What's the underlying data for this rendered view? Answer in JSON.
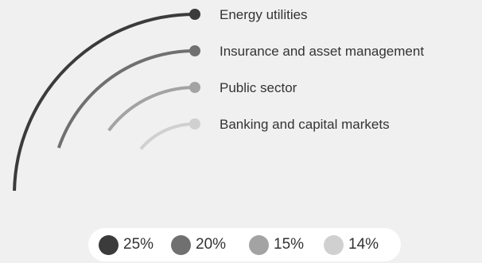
{
  "chart_data": {
    "type": "radial-bar",
    "title": "",
    "series": [
      {
        "name": "Energy utilities",
        "value": 25,
        "color": "#3b3b3b"
      },
      {
        "name": "Insurance and asset management",
        "value": 20,
        "color": "#707070"
      },
      {
        "name": "Public sector",
        "value": 15,
        "color": "#a3a3a3"
      },
      {
        "name": "Banking and capital markets",
        "value": 14,
        "color": "#d0d0d0"
      }
    ],
    "unit": "%",
    "legend": {
      "placement": "bottom",
      "items": [
        {
          "label": "25%",
          "color": "#3b3b3b"
        },
        {
          "label": "20%",
          "color": "#707070"
        },
        {
          "label": "15%",
          "color": "#a3a3a3"
        },
        {
          "label": "14%",
          "color": "#d0d0d0"
        }
      ]
    }
  }
}
